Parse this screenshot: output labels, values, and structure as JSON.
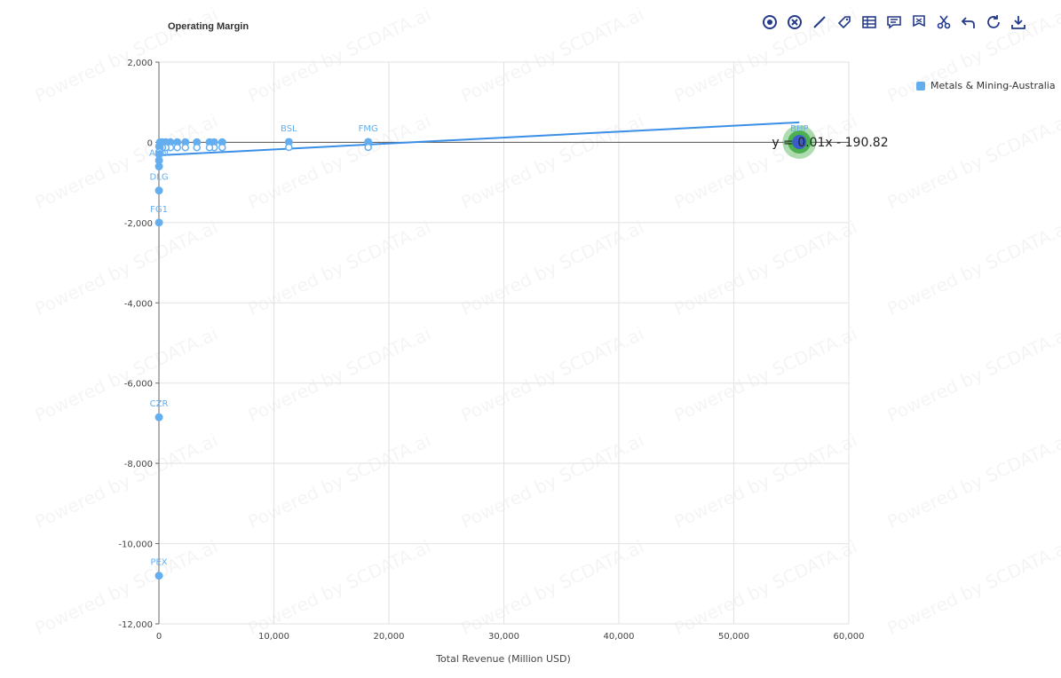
{
  "watermark": "Powered by SCDATA.ai",
  "toolbar": {
    "icons": [
      "target-icon",
      "clear-icon",
      "line-icon",
      "tag-icon",
      "table-icon",
      "comment-icon",
      "flag-icon",
      "cut-icon",
      "undo-icon",
      "refresh-icon",
      "download-icon"
    ],
    "color": "#233a8c"
  },
  "colors": {
    "series": "#64aef0",
    "series_line": "#3a8fe6",
    "highlight_outer": "#4caf50",
    "highlight_inner": "#3d5ccc",
    "grid": "#e2e2e2",
    "axis_text": "#444444"
  },
  "chart_data": {
    "type": "scatter",
    "title": "Operating Margin",
    "xlabel": "Total Revenue (Million USD)",
    "ylabel": "",
    "xlim": [
      0,
      60000
    ],
    "ylim": [
      -12000,
      2000
    ],
    "xticks": [
      "0",
      "10,000",
      "20,000",
      "30,000",
      "40,000",
      "50,000",
      "60,000"
    ],
    "yticks": [
      "2,000",
      "0",
      "-2,000",
      "-4,000",
      "-6,000",
      "-8,000",
      "-10,000",
      "-12,000"
    ],
    "legend": {
      "entries": [
        "Metals & Mining-Australia"
      ],
      "position": "top-right"
    },
    "series": [
      {
        "name": "Metals & Mining-Australia",
        "points": [
          {
            "label": "BHP",
            "x": 55700,
            "y": 10,
            "highlight": true
          },
          {
            "label": "FMG",
            "x": 18200,
            "y": 10
          },
          {
            "label": "BSL",
            "x": 11300,
            "y": 10
          },
          {
            "label": "",
            "x": 5500,
            "y": 5
          },
          {
            "label": "",
            "x": 4800,
            "y": 5
          },
          {
            "label": "",
            "x": 4400,
            "y": 5
          },
          {
            "label": "",
            "x": 3300,
            "y": 5
          },
          {
            "label": "",
            "x": 2300,
            "y": 5
          },
          {
            "label": "",
            "x": 1600,
            "y": 5
          },
          {
            "label": "",
            "x": 1000,
            "y": 5
          },
          {
            "label": "",
            "x": 600,
            "y": 5
          },
          {
            "label": "",
            "x": 300,
            "y": 5
          },
          {
            "label": "",
            "x": 100,
            "y": 5
          },
          {
            "label": "",
            "x": 20,
            "y": -100
          },
          {
            "label": "",
            "x": 15,
            "y": -300
          },
          {
            "label": "",
            "x": 10,
            "y": -450
          },
          {
            "label": "ADN",
            "x": 5,
            "y": -600
          },
          {
            "label": "DLG",
            "x": 5,
            "y": -1200
          },
          {
            "label": "FG1",
            "x": 5,
            "y": -2000
          },
          {
            "label": "CZR",
            "x": 5,
            "y": -6850
          },
          {
            "label": "PEX",
            "x": 5,
            "y": -10800
          }
        ]
      }
    ],
    "trendline": {
      "label": "y = 0.01x - 190.82",
      "slope": 0.01,
      "intercept": -190.82
    }
  }
}
